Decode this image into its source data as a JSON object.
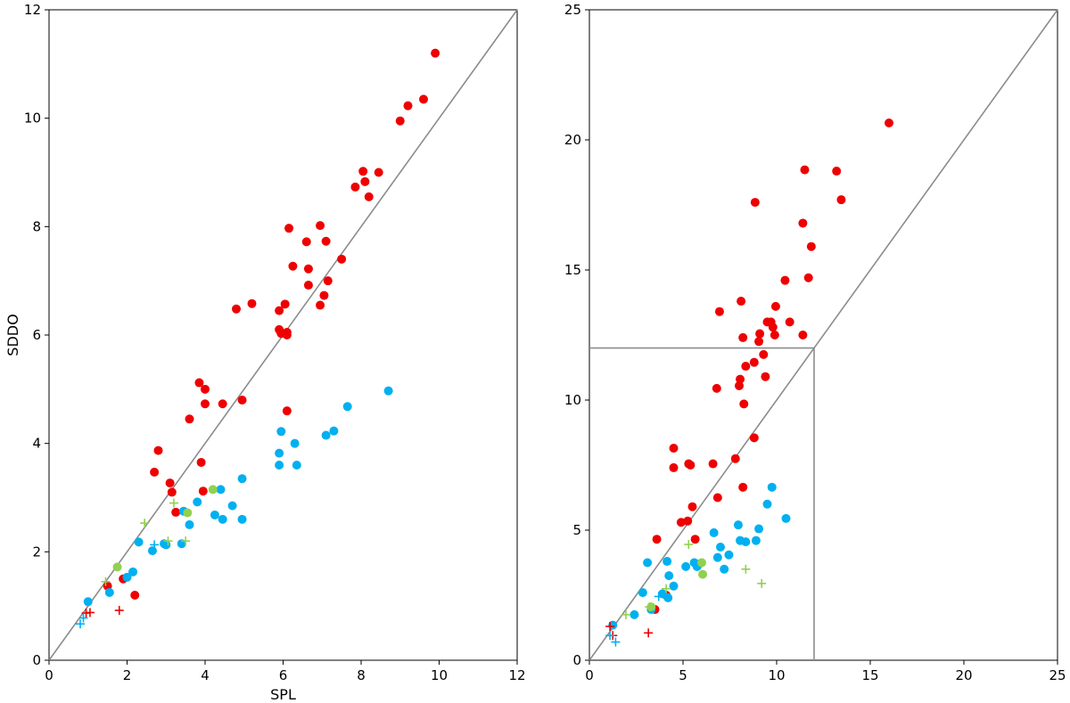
{
  "chart_data": [
    {
      "type": "scatter",
      "title": "",
      "xlabel": "SPL",
      "ylabel": "SDDO",
      "xlim": [
        0,
        12
      ],
      "ylim": [
        0,
        12
      ],
      "xticks": [
        0,
        2,
        4,
        6,
        8,
        10,
        12
      ],
      "yticks": [
        0,
        2,
        4,
        6,
        8,
        10,
        12
      ],
      "grid": false,
      "reference_lines": [
        {
          "points": [
            [
              0,
              0
            ],
            [
              12,
              12
            ]
          ],
          "color": "#8c8c8c"
        }
      ],
      "series": [
        {
          "marker": "circle",
          "color": "#ee0000",
          "points": [
            [
              1.5,
              1.37
            ],
            [
              1.9,
              1.5
            ],
            [
              2.2,
              1.2
            ],
            [
              2.7,
              3.47
            ],
            [
              2.8,
              3.87
            ],
            [
              3.1,
              3.27
            ],
            [
              3.15,
              3.1
            ],
            [
              3.25,
              2.73
            ],
            [
              3.6,
              4.45
            ],
            [
              3.85,
              5.12
            ],
            [
              3.9,
              3.65
            ],
            [
              3.95,
              3.12
            ],
            [
              4.0,
              5.0
            ],
            [
              4.0,
              4.73
            ],
            [
              4.45,
              4.73
            ],
            [
              4.8,
              6.48
            ],
            [
              4.95,
              4.8
            ],
            [
              5.2,
              6.58
            ],
            [
              5.9,
              6.45
            ],
            [
              5.9,
              6.1
            ],
            [
              5.95,
              6.03
            ],
            [
              6.05,
              6.57
            ],
            [
              6.1,
              6.05
            ],
            [
              6.1,
              6.0
            ],
            [
              6.1,
              4.6
            ],
            [
              6.15,
              7.97
            ],
            [
              6.25,
              7.27
            ],
            [
              6.6,
              7.72
            ],
            [
              6.65,
              7.22
            ],
            [
              6.65,
              6.92
            ],
            [
              6.95,
              6.55
            ],
            [
              6.95,
              8.02
            ],
            [
              7.05,
              6.73
            ],
            [
              7.1,
              7.73
            ],
            [
              7.15,
              7.0
            ],
            [
              7.5,
              7.4
            ],
            [
              7.85,
              8.73
            ],
            [
              8.05,
              9.02
            ],
            [
              8.1,
              8.83
            ],
            [
              8.2,
              8.55
            ],
            [
              8.45,
              9.0
            ],
            [
              9.0,
              9.95
            ],
            [
              9.2,
              10.23
            ],
            [
              9.6,
              10.35
            ],
            [
              9.9,
              11.2
            ]
          ]
        },
        {
          "marker": "circle",
          "color": "#00b0f0",
          "points": [
            [
              1.0,
              1.08
            ],
            [
              1.55,
              1.25
            ],
            [
              2.0,
              1.53
            ],
            [
              2.15,
              1.63
            ],
            [
              2.3,
              2.18
            ],
            [
              2.65,
              2.02
            ],
            [
              2.95,
              2.15
            ],
            [
              3.0,
              2.13
            ],
            [
              3.4,
              2.15
            ],
            [
              3.45,
              2.75
            ],
            [
              3.6,
              2.5
            ],
            [
              3.8,
              2.92
            ],
            [
              4.25,
              2.68
            ],
            [
              4.4,
              3.15
            ],
            [
              4.45,
              2.6
            ],
            [
              4.7,
              2.85
            ],
            [
              4.95,
              2.6
            ],
            [
              4.95,
              3.35
            ],
            [
              5.9,
              3.6
            ],
            [
              5.9,
              3.82
            ],
            [
              5.95,
              4.22
            ],
            [
              6.3,
              4.0
            ],
            [
              6.35,
              3.6
            ],
            [
              7.1,
              4.15
            ],
            [
              7.3,
              4.23
            ],
            [
              7.65,
              4.68
            ],
            [
              8.7,
              4.97
            ]
          ]
        },
        {
          "marker": "circle",
          "color": "#92d050",
          "points": [
            [
              1.75,
              1.72
            ],
            [
              3.55,
              2.72
            ],
            [
              4.2,
              3.15
            ]
          ]
        },
        {
          "marker": "plus",
          "color": "#ee0000",
          "points": [
            [
              0.95,
              0.87
            ],
            [
              1.05,
              0.88
            ],
            [
              1.8,
              0.92
            ]
          ]
        },
        {
          "marker": "plus",
          "color": "#00b0f0",
          "points": [
            [
              0.8,
              0.67
            ],
            [
              0.88,
              0.78
            ],
            [
              2.7,
              2.13
            ]
          ]
        },
        {
          "marker": "plus",
          "color": "#92d050",
          "points": [
            [
              1.45,
              1.45
            ],
            [
              2.45,
              2.53
            ],
            [
              3.05,
              2.2
            ],
            [
              3.2,
              2.9
            ],
            [
              3.5,
              2.2
            ]
          ]
        }
      ]
    },
    {
      "type": "scatter",
      "title": "",
      "xlabel": "",
      "ylabel": "",
      "xlim": [
        0,
        25
      ],
      "ylim": [
        0,
        25
      ],
      "xticks": [
        0,
        5,
        10,
        15,
        20,
        25
      ],
      "yticks": [
        0,
        5,
        10,
        15,
        20,
        25
      ],
      "grid": false,
      "reference_lines": [
        {
          "points": [
            [
              0,
              0
            ],
            [
              25,
              25
            ]
          ],
          "color": "#8c8c8c"
        },
        {
          "points": [
            [
              0,
              12
            ],
            [
              12,
              12
            ]
          ],
          "color": "#8c8c8c"
        },
        {
          "points": [
            [
              12,
              0
            ],
            [
              12,
              12
            ]
          ],
          "color": "#8c8c8c"
        }
      ],
      "series": [
        {
          "marker": "circle",
          "color": "#ee0000",
          "points": [
            [
              3.5,
              1.95
            ],
            [
              3.6,
              4.65
            ],
            [
              4.1,
              2.5
            ],
            [
              4.5,
              8.15
            ],
            [
              4.5,
              7.4
            ],
            [
              4.9,
              5.3
            ],
            [
              5.25,
              5.35
            ],
            [
              5.3,
              7.55
            ],
            [
              5.4,
              7.5
            ],
            [
              5.5,
              5.9
            ],
            [
              5.65,
              4.65
            ],
            [
              6.6,
              7.55
            ],
            [
              6.8,
              10.45
            ],
            [
              6.85,
              6.25
            ],
            [
              6.95,
              13.4
            ],
            [
              7.8,
              7.75
            ],
            [
              8.0,
              10.55
            ],
            [
              8.05,
              10.8
            ],
            [
              8.1,
              13.8
            ],
            [
              8.2,
              12.4
            ],
            [
              8.2,
              6.65
            ],
            [
              8.25,
              9.85
            ],
            [
              8.35,
              11.3
            ],
            [
              8.8,
              8.55
            ],
            [
              8.8,
              11.45
            ],
            [
              8.85,
              17.6
            ],
            [
              9.05,
              12.25
            ],
            [
              9.1,
              12.55
            ],
            [
              9.3,
              11.75
            ],
            [
              9.4,
              10.9
            ],
            [
              9.5,
              13.0
            ],
            [
              9.7,
              13.0
            ],
            [
              9.8,
              12.8
            ],
            [
              9.9,
              12.5
            ],
            [
              9.95,
              13.6
            ],
            [
              10.45,
              14.6
            ],
            [
              10.7,
              13.0
            ],
            [
              11.4,
              12.5
            ],
            [
              11.4,
              16.8
            ],
            [
              11.5,
              18.85
            ],
            [
              11.7,
              14.7
            ],
            [
              11.85,
              15.9
            ],
            [
              13.2,
              18.8
            ],
            [
              13.45,
              17.7
            ],
            [
              16.0,
              20.65
            ]
          ]
        },
        {
          "marker": "circle",
          "color": "#00b0f0",
          "points": [
            [
              1.25,
              1.35
            ],
            [
              2.4,
              1.75
            ],
            [
              2.85,
              2.6
            ],
            [
              3.1,
              3.75
            ],
            [
              3.3,
              1.95
            ],
            [
              3.9,
              2.55
            ],
            [
              4.15,
              3.8
            ],
            [
              4.2,
              2.4
            ],
            [
              4.25,
              3.25
            ],
            [
              4.5,
              2.85
            ],
            [
              5.15,
              3.6
            ],
            [
              5.6,
              3.75
            ],
            [
              5.75,
              3.6
            ],
            [
              5.85,
              3.7
            ],
            [
              6.65,
              4.9
            ],
            [
              6.85,
              3.95
            ],
            [
              7.0,
              4.35
            ],
            [
              7.2,
              3.5
            ],
            [
              7.45,
              4.05
            ],
            [
              7.95,
              5.2
            ],
            [
              8.05,
              4.6
            ],
            [
              8.35,
              4.55
            ],
            [
              8.9,
              4.6
            ],
            [
              9.05,
              5.05
            ],
            [
              9.5,
              6.0
            ],
            [
              9.75,
              6.65
            ],
            [
              10.5,
              5.45
            ]
          ]
        },
        {
          "marker": "circle",
          "color": "#92d050",
          "points": [
            [
              3.3,
              2.05
            ],
            [
              6.0,
              3.75
            ],
            [
              6.05,
              3.3
            ]
          ]
        },
        {
          "marker": "plus",
          "color": "#ee0000",
          "points": [
            [
              1.1,
              1.3
            ],
            [
              1.25,
              0.95
            ],
            [
              3.15,
              1.05
            ]
          ]
        },
        {
          "marker": "plus",
          "color": "#00b0f0",
          "points": [
            [
              1.1,
              0.95
            ],
            [
              1.4,
              0.7
            ],
            [
              3.7,
              2.45
            ]
          ]
        },
        {
          "marker": "plus",
          "color": "#92d050",
          "points": [
            [
              1.95,
              1.75
            ],
            [
              3.2,
              2.05
            ],
            [
              4.1,
              2.75
            ],
            [
              5.3,
              4.45
            ],
            [
              8.35,
              3.5
            ],
            [
              9.2,
              2.95
            ]
          ]
        }
      ]
    }
  ]
}
